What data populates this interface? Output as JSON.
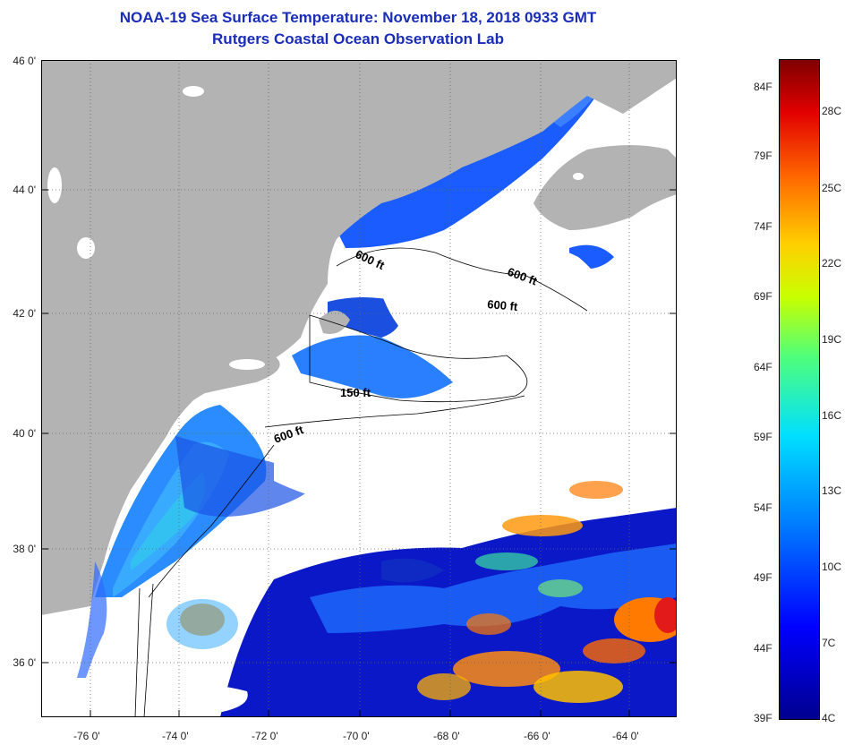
{
  "title": {
    "line1": "NOAA-19 Sea Surface Temperature:  November 18, 2018 0933 GMT",
    "line2": "Rutgers Coastal Ocean Observation Lab"
  },
  "axes": {
    "lat_labels": [
      "46 0'",
      "44 0'",
      "42 0'",
      "40 0'",
      "38 0'",
      "36 0'"
    ],
    "lon_labels": [
      "-76 0'",
      "-74 0'",
      "-72 0'",
      "-70 0'",
      "-68 0'",
      "-66 0'",
      "-64 0'"
    ]
  },
  "contours": [
    "600 ft",
    "600 ft",
    "600 ft",
    "150 ft",
    "600 ft"
  ],
  "colorbar": {
    "fahrenheit": [
      "84F",
      "79F",
      "74F",
      "69F",
      "64F",
      "59F",
      "54F",
      "49F",
      "44F",
      "39F"
    ],
    "celsius": [
      "28C",
      "25C",
      "22C",
      "19C",
      "16C",
      "13C",
      "10C",
      "7C",
      "4C"
    ]
  },
  "colors": {
    "title": "#1a2db8",
    "land": "#b3b3b3",
    "cloud": "#ffffff"
  }
}
